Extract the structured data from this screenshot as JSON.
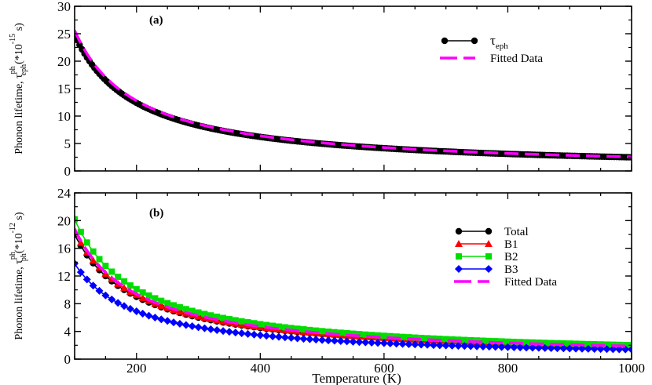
{
  "chart_data": [
    {
      "type": "line",
      "panel_label": "(a)",
      "ylabel": {
        "base": "Phonon lifetime, τ",
        "sup": "ph",
        "sub": "eph",
        "unit_pre": "(*10",
        "unit_exp": "-15",
        "unit_post": " s)"
      },
      "xlim": [
        100,
        1000
      ],
      "ylim": [
        0,
        30
      ],
      "yticks": [
        0,
        5,
        10,
        15,
        20,
        25,
        30
      ],
      "xticks": [
        200,
        400,
        600,
        800,
        1000
      ],
      "legend": {
        "position": "top-right",
        "entries": [
          {
            "label": "τ",
            "label_sub": "eph"
          },
          {
            "label": "Fitted Data"
          }
        ]
      },
      "series": [
        {
          "name": "τeph",
          "color": "#000000",
          "style": "line-circle",
          "A": 2480,
          "p": 1.0
        },
        {
          "name": "Fitted Data",
          "color": "#ff00ff",
          "style": "dashed",
          "A": 2560,
          "p": 1.0
        }
      ]
    },
    {
      "type": "line",
      "panel_label": "(b)",
      "ylabel": {
        "base": "Phonon lifetime, τ",
        "sup": "ph",
        "sub": "ph",
        "unit_pre": "(*10",
        "unit_exp": "-12",
        "unit_post": " s)"
      },
      "xlabel": "Temperature (K)",
      "xlim": [
        100,
        1000
      ],
      "ylim": [
        0,
        24
      ],
      "yticks": [
        0,
        4,
        8,
        12,
        16,
        20,
        24
      ],
      "xticks": [
        200,
        400,
        600,
        800,
        1000
      ],
      "legend": {
        "position": "right",
        "entries": [
          {
            "label": "Total"
          },
          {
            "label": "B1"
          },
          {
            "label": "B2"
          },
          {
            "label": "B3"
          },
          {
            "label": "Fitted Data"
          }
        ]
      },
      "series": [
        {
          "name": "Total",
          "color": "#000000",
          "style": "line-circle",
          "A": 1800,
          "p": 1.0
        },
        {
          "name": "B1",
          "color": "#ff0000",
          "style": "line-triangle",
          "A": 1850,
          "p": 1.0
        },
        {
          "name": "B2",
          "color": "#00dd00",
          "style": "line-square",
          "A": 2020,
          "p": 1.0
        },
        {
          "name": "B3",
          "color": "#0000ff",
          "style": "line-diamond",
          "A": 1380,
          "p": 1.0
        },
        {
          "name": "Fitted Data",
          "color": "#ff00ff",
          "style": "dashed",
          "A": 1880,
          "p": 1.0
        }
      ]
    }
  ]
}
